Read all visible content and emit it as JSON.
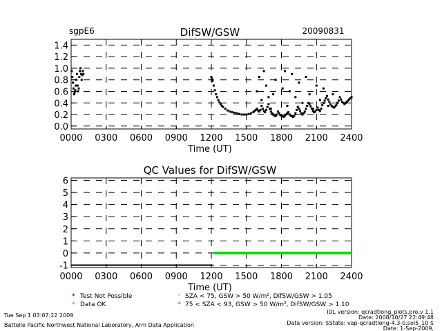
{
  "header": {
    "site": "sgpE6",
    "date": "20090831"
  },
  "chart_data": [
    {
      "type": "scatter",
      "title": "DifSW/GSW",
      "xlabel": "Time (UT)",
      "ylabel": "",
      "xlim": [
        0,
        24
      ],
      "ylim": [
        -0.05,
        1.5
      ],
      "x_tick_labels": [
        "0000",
        "0300",
        "0600",
        "0900",
        "1200",
        "1500",
        "1800",
        "2100",
        "2400"
      ],
      "y_tick_labels": [
        "0.0",
        "0.2",
        "0.4",
        "0.6",
        "0.8",
        "1.0",
        "1.2",
        "1.4"
      ],
      "y_ticks": [
        0,
        0.2,
        0.4,
        0.6,
        0.8,
        1.0,
        1.2,
        1.4
      ],
      "grid": true,
      "series": [
        {
          "color": "#000000",
          "marker": "small-square",
          "x": [
            0.05,
            0.1,
            0.15,
            0.2,
            0.25,
            0.3,
            0.35,
            0.4,
            0.45,
            0.5,
            0.55,
            0.6,
            0.65,
            0.7,
            0.75,
            0.8,
            0.85,
            0.9,
            0.95,
            1.0,
            1.05,
            12.0,
            12.05,
            12.1,
            12.2,
            12.3,
            12.4,
            12.5,
            12.6,
            12.7,
            12.8,
            12.9,
            13.0,
            13.2,
            13.4,
            13.6,
            13.8,
            14.0,
            14.2,
            14.4,
            14.6,
            14.8,
            15.0,
            15.2,
            15.4,
            15.6,
            15.7,
            15.8,
            15.9,
            16.0,
            16.1,
            16.2,
            16.3,
            16.4,
            16.5,
            16.6,
            16.7,
            16.8,
            16.9,
            17.0,
            17.1,
            17.2,
            17.3,
            17.4,
            17.5,
            17.6,
            17.7,
            17.8,
            17.9,
            18.0,
            18.1,
            18.2,
            18.3,
            18.4,
            18.5,
            18.6,
            18.7,
            18.8,
            18.9,
            19.0,
            19.1,
            19.2,
            19.3,
            19.4,
            19.5,
            19.6,
            19.7,
            19.8,
            19.9,
            20.0,
            20.1,
            20.2,
            20.3,
            20.4,
            20.5,
            20.6,
            20.7,
            20.8,
            20.9,
            21.0,
            21.1,
            21.2,
            21.3,
            21.4,
            21.5,
            21.6,
            21.7,
            21.8,
            21.9,
            22.0,
            22.1,
            22.2,
            22.3,
            22.4,
            22.5,
            22.6,
            22.7,
            22.8,
            22.9,
            23.0,
            23.1,
            23.2,
            23.3,
            23.4,
            23.5,
            23.6,
            23.7,
            23.8,
            23.9,
            24.0,
            15.9,
            16.1,
            16.3,
            16.5,
            16.7,
            16.9,
            17.1,
            17.3,
            17.5,
            18.1,
            18.3,
            18.5,
            18.7,
            18.9,
            19.2,
            19.5,
            19.8,
            20.1,
            20.4,
            20.7,
            21.0,
            21.3,
            21.6,
            22.0,
            22.4,
            22.8
          ],
          "y": [
            0.95,
            0.85,
            0.75,
            0.65,
            0.55,
            0.58,
            0.62,
            0.7,
            0.8,
            0.9,
            0.7,
            0.6,
            0.65,
            0.85,
            0.95,
            1.0,
            0.9,
            0.8,
            0.88,
            0.95,
            0.9,
            0.85,
            0.82,
            0.78,
            0.7,
            0.62,
            0.55,
            0.5,
            0.45,
            0.41,
            0.38,
            0.35,
            0.33,
            0.3,
            0.27,
            0.25,
            0.24,
            0.23,
            0.22,
            0.21,
            0.2,
            0.2,
            0.2,
            0.21,
            0.22,
            0.24,
            0.26,
            0.28,
            0.3,
            0.27,
            0.25,
            0.28,
            0.35,
            0.3,
            0.26,
            0.24,
            0.28,
            0.33,
            0.38,
            0.3,
            0.25,
            0.22,
            0.2,
            0.18,
            0.17,
            0.2,
            0.25,
            0.22,
            0.19,
            0.18,
            0.17,
            0.16,
            0.18,
            0.2,
            0.22,
            0.24,
            0.2,
            0.18,
            0.17,
            0.16,
            0.18,
            0.22,
            0.28,
            0.33,
            0.3,
            0.26,
            0.22,
            0.2,
            0.22,
            0.25,
            0.3,
            0.35,
            0.4,
            0.38,
            0.34,
            0.3,
            0.26,
            0.24,
            0.25,
            0.28,
            0.32,
            0.28,
            0.26,
            0.3,
            0.36,
            0.4,
            0.44,
            0.48,
            0.52,
            0.46,
            0.42,
            0.38,
            0.35,
            0.33,
            0.32,
            0.34,
            0.36,
            0.4,
            0.44,
            0.5,
            0.46,
            0.42,
            0.4,
            0.38,
            0.4,
            0.42,
            0.44,
            0.46,
            0.48,
            0.5,
            0.6,
            0.85,
            0.45,
            0.95,
            0.7,
            0.5,
            0.3,
            0.55,
            0.8,
            0.65,
            0.95,
            0.35,
            0.6,
            0.9,
            0.5,
            0.75,
            0.4,
            0.85,
            0.55,
            0.3,
            0.7,
            0.45,
            0.65,
            0.35,
            0.55,
            0.4
          ]
        }
      ]
    },
    {
      "type": "scatter",
      "title": "QC Values for DifSW/GSW",
      "xlabel": "Time (UT)",
      "ylabel": "",
      "xlim": [
        0,
        24
      ],
      "ylim": [
        -1.2,
        6.2
      ],
      "x_tick_labels": [
        "0000",
        "0300",
        "0600",
        "0900",
        "1200",
        "1500",
        "1800",
        "2100",
        "2400"
      ],
      "y_tick_labels": [
        "-1",
        "0",
        "1",
        "2",
        "3",
        "4",
        "5",
        "6"
      ],
      "y_ticks": [
        -1,
        0,
        1,
        2,
        3,
        4,
        5,
        6
      ],
      "grid": true,
      "series": [
        {
          "color": "#000000",
          "x": [
            0,
            12.1
          ],
          "y": [
            -1,
            -1
          ]
        },
        {
          "color": "#00dd00",
          "x": [
            12.2,
            24.0
          ],
          "y": [
            0,
            0
          ]
        }
      ]
    }
  ],
  "legend": {
    "items": [
      {
        "marker": "*",
        "color": "#000000",
        "label": "Test Not Possible"
      },
      {
        "marker": "*",
        "color": "#00dd00",
        "label": "Data OK"
      },
      {
        "marker": "*",
        "color": "#e0b000",
        "label": "SZA < 75, GSW > 50 W/m², DifSW/GSW > 1.05"
      },
      {
        "marker": "*",
        "color": "#ff0000",
        "label": "75 < SZA < 93, GSW > 50 W/m², DifSW/GSW > 1.10"
      }
    ]
  },
  "footer": {
    "timestamp": "Tue Sep  1 03:07:22 2009",
    "org": "Battelle Pacific Northwest National Laboratory, Arm Data Application",
    "idl": "IDL version: qcradtlong_plots.pro,v 1.1",
    "date_line": "Date: 2008/10/27 22:49:48",
    "data_version": "Data version: $State: vap-qcradtlong-4.3-0.sol5_10 $",
    "date2": "Date: 1-Sep-2009,"
  }
}
